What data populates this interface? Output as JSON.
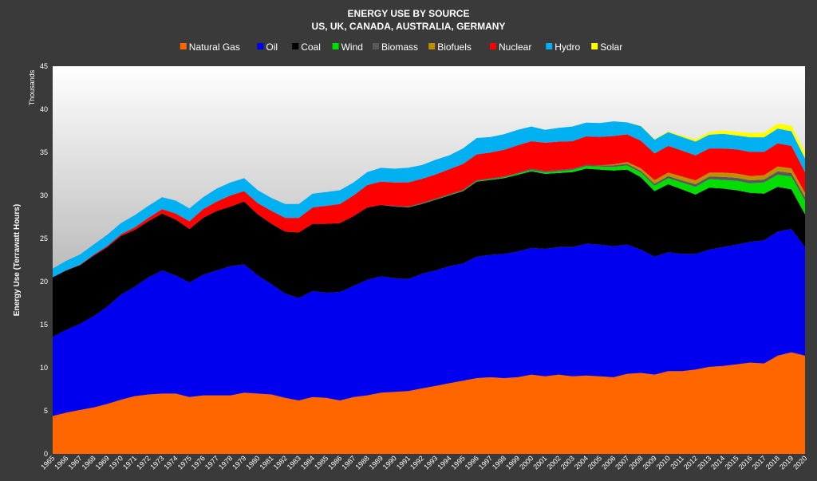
{
  "chart_data": {
    "type": "area",
    "stacked": true,
    "title": "ENERGY USE BY SOURCE",
    "subtitle": "US, UK, CANADA, AUSTRALIA, GERMANY",
    "ylabel": "Energy Use (Terrawatt Hours)",
    "yunit_label": "Thousands",
    "ylim": [
      0,
      45
    ],
    "yticks": [
      0,
      5,
      10,
      15,
      20,
      25,
      30,
      35,
      40,
      45
    ],
    "legend_position": "top",
    "x": [
      "1965",
      "1966",
      "1967",
      "1968",
      "1969",
      "1970",
      "1971",
      "1972",
      "1973",
      "1974",
      "1975",
      "1976",
      "1977",
      "1978",
      "1979",
      "1980",
      "1981",
      "1982",
      "1983",
      "1984",
      "1985",
      "1986",
      "1987",
      "1988",
      "1989",
      "1990",
      "1991",
      "1992",
      "1993",
      "1994",
      "1995",
      "1996",
      "1997",
      "1998",
      "1999",
      "2000",
      "2001",
      "2002",
      "2003",
      "2004",
      "2005",
      "2006",
      "2007",
      "2008",
      "2009",
      "2010",
      "2011",
      "2012",
      "2013",
      "2014",
      "2015",
      "2016",
      "2017",
      "2018",
      "2019",
      "2020"
    ],
    "series": [
      {
        "name": "Natural Gas",
        "color": "#ff6600",
        "values": [
          4.4,
          4.8,
          5.1,
          5.4,
          5.8,
          6.3,
          6.7,
          6.9,
          7.0,
          7.0,
          6.6,
          6.8,
          6.8,
          6.8,
          7.1,
          7.0,
          6.9,
          6.5,
          6.2,
          6.6,
          6.5,
          6.2,
          6.6,
          6.8,
          7.1,
          7.2,
          7.3,
          7.6,
          7.9,
          8.2,
          8.5,
          8.8,
          8.9,
          8.8,
          8.9,
          9.2,
          9.0,
          9.2,
          9.0,
          9.1,
          9.0,
          8.9,
          9.3,
          9.4,
          9.2,
          9.6,
          9.6,
          9.8,
          10.1,
          10.2,
          10.4,
          10.6,
          10.5,
          11.4,
          11.8,
          11.4
        ]
      },
      {
        "name": "Oil",
        "color": "#0000ee",
        "values": [
          9.2,
          9.6,
          10.0,
          10.6,
          11.3,
          12.2,
          12.7,
          13.6,
          14.3,
          13.7,
          13.3,
          14.0,
          14.5,
          15.0,
          14.9,
          13.7,
          12.8,
          12.1,
          11.9,
          12.3,
          12.2,
          12.6,
          12.9,
          13.4,
          13.5,
          13.2,
          13.0,
          13.3,
          13.4,
          13.6,
          13.6,
          14.1,
          14.2,
          14.4,
          14.6,
          14.7,
          14.8,
          14.8,
          15.0,
          15.3,
          15.3,
          15.2,
          15.0,
          14.3,
          13.7,
          13.8,
          13.6,
          13.4,
          13.6,
          13.8,
          13.9,
          14.0,
          14.3,
          14.4,
          14.3,
          12.6
        ]
      },
      {
        "name": "Coal",
        "color": "#000000",
        "values": [
          6.9,
          6.9,
          6.8,
          7.0,
          6.9,
          6.8,
          6.6,
          6.5,
          6.6,
          6.5,
          6.2,
          6.6,
          6.9,
          6.9,
          7.3,
          7.1,
          7.0,
          7.2,
          7.6,
          7.8,
          8.0,
          8.0,
          8.1,
          8.4,
          8.3,
          8.3,
          8.3,
          8.1,
          8.2,
          8.2,
          8.4,
          8.7,
          8.7,
          8.8,
          8.9,
          8.9,
          8.7,
          8.6,
          8.7,
          8.7,
          8.7,
          8.8,
          8.7,
          8.4,
          7.6,
          7.9,
          7.5,
          6.9,
          7.2,
          6.8,
          6.3,
          5.7,
          5.4,
          5.2,
          4.6,
          3.8
        ]
      },
      {
        "name": "Wind",
        "color": "#00dd00",
        "values": [
          0,
          0,
          0,
          0,
          0,
          0,
          0,
          0,
          0,
          0,
          0,
          0,
          0,
          0,
          0,
          0,
          0,
          0,
          0,
          0,
          0,
          0,
          0,
          0,
          0,
          0,
          0.02,
          0.03,
          0.04,
          0.05,
          0.06,
          0.07,
          0.08,
          0.1,
          0.12,
          0.15,
          0.17,
          0.2,
          0.25,
          0.3,
          0.35,
          0.4,
          0.48,
          0.55,
          0.62,
          0.7,
          0.8,
          0.9,
          1.0,
          1.0,
          1.1,
          1.1,
          1.3,
          1.4,
          1.5,
          1.6
        ]
      },
      {
        "name": "Biomass",
        "color": "#595959",
        "values": [
          0,
          0,
          0,
          0,
          0,
          0,
          0,
          0,
          0,
          0,
          0,
          0,
          0,
          0,
          0,
          0,
          0,
          0,
          0,
          0,
          0,
          0,
          0,
          0,
          0,
          0.1,
          0.1,
          0.1,
          0.1,
          0.1,
          0.1,
          0.1,
          0.1,
          0.1,
          0.1,
          0.15,
          0.15,
          0.15,
          0.15,
          0.15,
          0.15,
          0.2,
          0.2,
          0.2,
          0.25,
          0.25,
          0.25,
          0.3,
          0.3,
          0.35,
          0.35,
          0.35,
          0.35,
          0.4,
          0.4,
          0.4
        ]
      },
      {
        "name": "Biofuels",
        "color": "#bf8f00",
        "values": [
          0,
          0,
          0,
          0,
          0,
          0,
          0,
          0,
          0,
          0,
          0,
          0,
          0,
          0,
          0,
          0,
          0,
          0,
          0,
          0,
          0,
          0,
          0,
          0,
          0,
          0,
          0,
          0,
          0,
          0,
          0,
          0,
          0,
          0,
          0,
          0,
          0,
          0,
          0,
          0,
          0,
          0.1,
          0.2,
          0.3,
          0.4,
          0.4,
          0.45,
          0.45,
          0.45,
          0.5,
          0.5,
          0.5,
          0.5,
          0.55,
          0.55,
          0.5
        ]
      },
      {
        "name": "Nuclear",
        "color": "#ff0000",
        "values": [
          0.01,
          0.02,
          0.05,
          0.1,
          0.15,
          0.2,
          0.3,
          0.4,
          0.5,
          0.7,
          0.9,
          1.0,
          1.1,
          1.3,
          1.2,
          1.3,
          1.5,
          1.6,
          1.7,
          1.9,
          2.1,
          2.2,
          2.4,
          2.6,
          2.7,
          2.7,
          2.8,
          2.8,
          2.8,
          2.9,
          3.0,
          3.0,
          3.0,
          3.1,
          3.2,
          3.2,
          3.3,
          3.3,
          3.2,
          3.3,
          3.3,
          3.3,
          3.2,
          3.2,
          3.1,
          3.1,
          3.0,
          2.9,
          2.8,
          2.8,
          2.8,
          2.8,
          2.7,
          2.7,
          2.6,
          2.4
        ]
      },
      {
        "name": "Hydro",
        "color": "#00b0f0",
        "values": [
          1.0,
          1.1,
          1.2,
          1.2,
          1.3,
          1.3,
          1.4,
          1.4,
          1.4,
          1.5,
          1.5,
          1.4,
          1.5,
          1.5,
          1.5,
          1.5,
          1.5,
          1.6,
          1.6,
          1.6,
          1.6,
          1.6,
          1.5,
          1.5,
          1.6,
          1.6,
          1.7,
          1.6,
          1.7,
          1.6,
          1.8,
          1.9,
          1.8,
          1.8,
          1.8,
          1.7,
          1.5,
          1.6,
          1.7,
          1.6,
          1.6,
          1.7,
          1.4,
          1.7,
          1.6,
          1.6,
          1.6,
          1.6,
          1.6,
          1.7,
          1.6,
          1.7,
          1.7,
          1.7,
          1.7,
          1.6
        ]
      },
      {
        "name": "Solar",
        "color": "#ffff00",
        "values": [
          0,
          0,
          0,
          0,
          0,
          0,
          0,
          0,
          0,
          0,
          0,
          0,
          0,
          0,
          0,
          0,
          0,
          0,
          0,
          0,
          0,
          0,
          0,
          0,
          0,
          0,
          0,
          0,
          0,
          0,
          0,
          0,
          0,
          0,
          0,
          0,
          0,
          0,
          0,
          0,
          0,
          0,
          0.02,
          0.04,
          0.06,
          0.1,
          0.15,
          0.25,
          0.3,
          0.4,
          0.45,
          0.5,
          0.55,
          0.6,
          0.65,
          0.7
        ]
      }
    ]
  }
}
